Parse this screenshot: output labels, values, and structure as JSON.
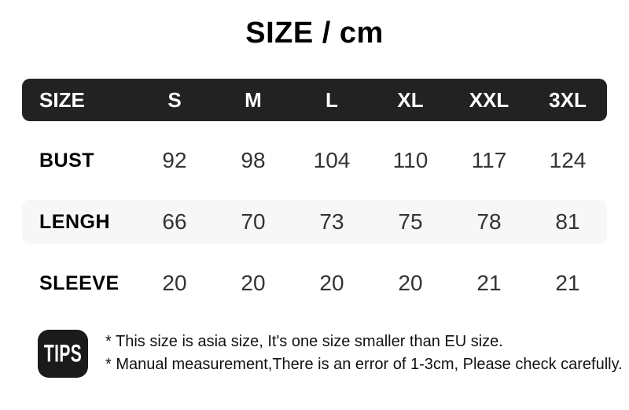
{
  "title": "SIZE / cm",
  "table": {
    "header": [
      "SIZE",
      "S",
      "M",
      "L",
      "XL",
      "XXL",
      "3XL"
    ],
    "rows": [
      {
        "label": "BUST",
        "values": [
          "92",
          "98",
          "104",
          "110",
          "117",
          "124"
        ]
      },
      {
        "label": "LENGH",
        "values": [
          "66",
          "70",
          "73",
          "75",
          "78",
          "81"
        ]
      },
      {
        "label": "SLEEVE",
        "values": [
          "20",
          "20",
          "20",
          "20",
          "21",
          "21"
        ]
      }
    ]
  },
  "tips": {
    "badge": "TIPS",
    "lines": [
      "* This size is asia size, It's one size smaller than EU size.",
      "* Manual measurement,There is an error of 1-3cm, Please check carefully."
    ]
  },
  "colors": {
    "header_bg": "#222222",
    "stripe_bg": "#f7f7f7",
    "number_color": "#333333",
    "badge_bg": "#1a1a1a"
  }
}
